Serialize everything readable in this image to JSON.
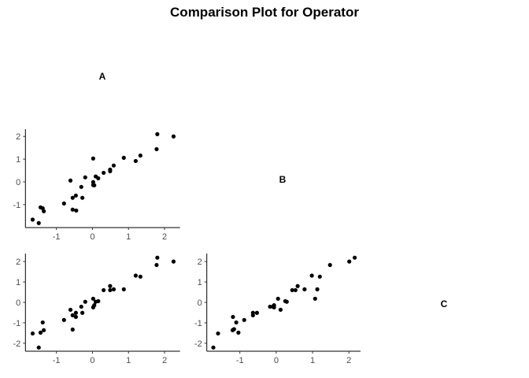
{
  "chart_data": {
    "type": "scatter",
    "title": "Comparison Plot for Operator",
    "variables": [
      "A",
      "B",
      "C"
    ],
    "grid": false,
    "point_color": "#000000",
    "panels": [
      {
        "x_var": "A",
        "y_var": "B",
        "xlim": [
          -1.86,
          2.43
        ],
        "ylim": [
          -2.01,
          2.32
        ],
        "xticks": [
          -1,
          0,
          1,
          2
        ],
        "yticks": [
          -1,
          0,
          1,
          2
        ],
        "points": [
          [
            -1.66,
            -1.66
          ],
          [
            -1.49,
            -1.81
          ],
          [
            -1.44,
            -1.12
          ],
          [
            -1.38,
            -1.16
          ],
          [
            -1.35,
            -1.29
          ],
          [
            -0.79,
            -0.95
          ],
          [
            -0.61,
            0.06
          ],
          [
            -0.55,
            -1.22
          ],
          [
            -0.45,
            -1.26
          ],
          [
            -0.55,
            -0.7
          ],
          [
            -0.46,
            -0.6
          ],
          [
            -0.31,
            -0.22
          ],
          [
            -0.28,
            -0.7
          ],
          [
            -0.2,
            0.2
          ],
          [
            0.02,
            1.03
          ],
          [
            0.02,
            -0.01
          ],
          [
            0.02,
            -0.14
          ],
          [
            0.05,
            -0.15
          ],
          [
            0.09,
            0.24
          ],
          [
            0.16,
            0.16
          ],
          [
            0.31,
            0.4
          ],
          [
            0.49,
            0.54
          ],
          [
            0.49,
            0.47
          ],
          [
            0.59,
            0.72
          ],
          [
            0.87,
            1.06
          ],
          [
            1.2,
            0.92
          ],
          [
            1.33,
            1.16
          ],
          [
            1.78,
            1.44
          ],
          [
            1.8,
            2.1
          ],
          [
            2.25,
            2.0
          ]
        ]
      },
      {
        "x_var": "A",
        "y_var": "C",
        "xlim": [
          -1.86,
          2.43
        ],
        "ylim": [
          -2.39,
          2.39
        ],
        "xticks": [
          -1,
          0,
          1,
          2
        ],
        "yticks": [
          -2,
          -1,
          0,
          1,
          2
        ],
        "points": [
          [
            -1.66,
            -1.52
          ],
          [
            -1.49,
            -2.21
          ],
          [
            -1.44,
            -1.48
          ],
          [
            -1.38,
            -0.98
          ],
          [
            -1.35,
            -1.36
          ],
          [
            -0.79,
            -0.86
          ],
          [
            -0.61,
            -0.36
          ],
          [
            -0.55,
            -0.63
          ],
          [
            -0.55,
            -1.33
          ],
          [
            -0.46,
            -0.51
          ],
          [
            -0.46,
            -0.71
          ],
          [
            -0.31,
            -0.21
          ],
          [
            -0.28,
            -0.51
          ],
          [
            -0.2,
            0.03
          ],
          [
            0.02,
            0.18
          ],
          [
            0.02,
            -0.24
          ],
          [
            0.05,
            -0.14
          ],
          [
            0.09,
            0.03
          ],
          [
            0.16,
            0.06
          ],
          [
            0.31,
            0.6
          ],
          [
            0.49,
            0.8
          ],
          [
            0.49,
            0.6
          ],
          [
            0.59,
            0.64
          ],
          [
            0.87,
            0.64
          ],
          [
            1.2,
            1.31
          ],
          [
            1.33,
            1.26
          ],
          [
            1.78,
            1.83
          ],
          [
            1.8,
            2.19
          ],
          [
            2.25,
            2.0
          ]
        ]
      },
      {
        "x_var": "B",
        "y_var": "C",
        "xlim": [
          -1.91,
          2.32
        ],
        "ylim": [
          -2.39,
          2.39
        ],
        "xticks": [
          -1,
          0,
          1,
          2
        ],
        "yticks": [
          -2,
          -1,
          0,
          1,
          2
        ],
        "points": [
          [
            -1.73,
            -2.21
          ],
          [
            -1.6,
            -1.52
          ],
          [
            -1.19,
            -0.71
          ],
          [
            -1.2,
            -1.36
          ],
          [
            -1.16,
            -1.31
          ],
          [
            -1.1,
            -0.98
          ],
          [
            -1.04,
            -1.48
          ],
          [
            -0.88,
            -0.86
          ],
          [
            -0.64,
            -0.51
          ],
          [
            -0.64,
            -0.63
          ],
          [
            -0.53,
            -0.51
          ],
          [
            -0.17,
            -0.21
          ],
          [
            -0.09,
            -0.21
          ],
          [
            -0.06,
            -0.14
          ],
          [
            -0.06,
            -0.24
          ],
          [
            0.05,
            0.18
          ],
          [
            0.12,
            -0.36
          ],
          [
            0.25,
            0.06
          ],
          [
            0.29,
            0.03
          ],
          [
            0.44,
            0.6
          ],
          [
            0.53,
            0.6
          ],
          [
            0.59,
            0.8
          ],
          [
            0.78,
            0.64
          ],
          [
            0.98,
            1.31
          ],
          [
            1.07,
            0.18
          ],
          [
            1.13,
            0.64
          ],
          [
            1.2,
            1.26
          ],
          [
            1.48,
            1.83
          ],
          [
            2.01,
            2.0
          ],
          [
            2.16,
            2.19
          ]
        ]
      }
    ]
  }
}
